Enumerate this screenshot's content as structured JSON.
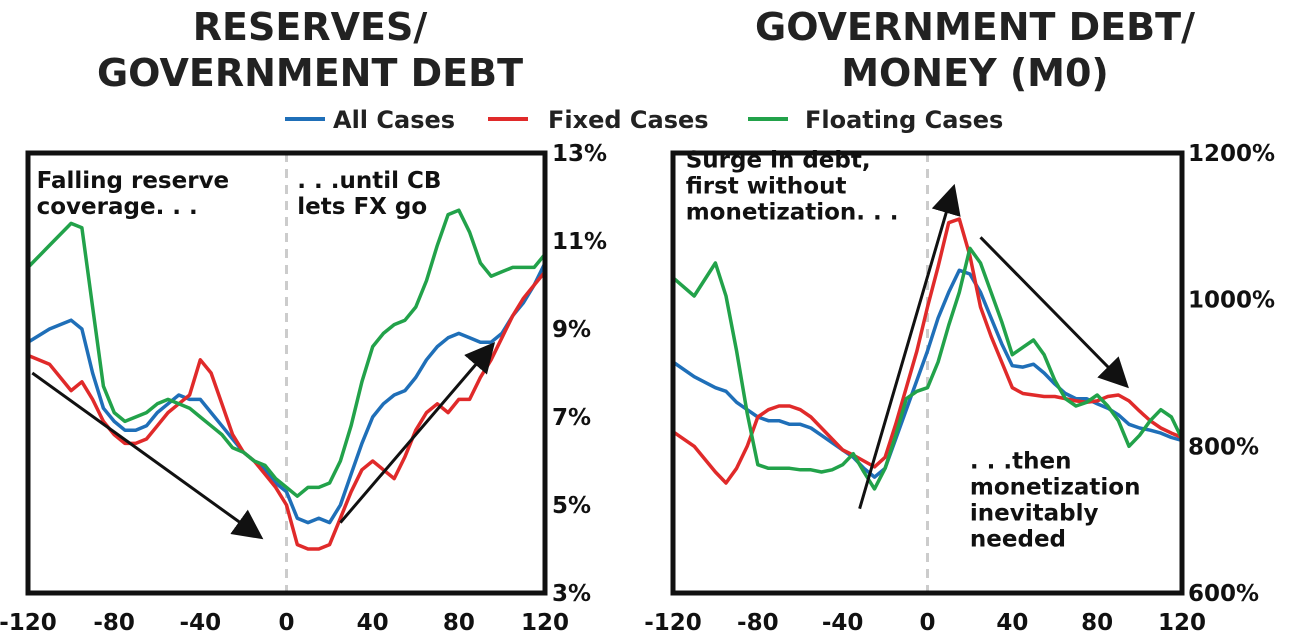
{
  "legend": [
    {
      "name": "All Cases",
      "color": "#1f6fb8"
    },
    {
      "name": "Fixed Cases",
      "color": "#e02a2a"
    },
    {
      "name": "Floating Cases",
      "color": "#22a24a"
    }
  ],
  "chart_data": [
    {
      "type": "line",
      "title": [
        "RESERVES/",
        "GOVERNMENT DEBT"
      ],
      "xlim": [
        -120,
        120
      ],
      "ylim": [
        3,
        13
      ],
      "x_ticks": [
        "-120",
        "-80",
        "-40",
        "0",
        "40",
        "80",
        "120"
      ],
      "y_ticks": [
        "3%",
        "5%",
        "7%",
        "9%",
        "11%",
        "13%"
      ],
      "y_tick_values": [
        3,
        5,
        7,
        9,
        11,
        13
      ],
      "y_axis_side": "right",
      "vertical_marker_x": 0,
      "annotations": [
        {
          "lines": [
            "Falling reserve",
            "coverage. . ."
          ],
          "x": -116,
          "y": 12.2
        },
        {
          "lines": [
            ". . .until CB",
            "lets FX go"
          ],
          "x": 5,
          "y": 12.2
        }
      ],
      "arrows": [
        {
          "from": [
            -118,
            8.0
          ],
          "to": [
            -13,
            4.3
          ]
        },
        {
          "from": [
            25,
            4.6
          ],
          "to": [
            95,
            8.6
          ]
        }
      ],
      "x": [
        -120,
        -110,
        -100,
        -95,
        -90,
        -85,
        -80,
        -75,
        -70,
        -65,
        -60,
        -55,
        -50,
        -45,
        -40,
        -35,
        -30,
        -25,
        -20,
        -15,
        -10,
        -5,
        0,
        5,
        10,
        15,
        20,
        25,
        30,
        35,
        40,
        45,
        50,
        55,
        60,
        65,
        70,
        75,
        80,
        85,
        90,
        95,
        100,
        105,
        110,
        115,
        120
      ],
      "series": [
        {
          "name": "All Cases",
          "color": "#1f6fb8",
          "values": [
            8.7,
            9.0,
            9.2,
            9.0,
            8.0,
            7.2,
            6.9,
            6.7,
            6.7,
            6.8,
            7.1,
            7.3,
            7.5,
            7.4,
            7.4,
            7.1,
            6.8,
            6.5,
            6.2,
            6.0,
            5.8,
            5.5,
            5.3,
            4.7,
            4.6,
            4.7,
            4.6,
            5.0,
            5.7,
            6.4,
            7.0,
            7.3,
            7.5,
            7.6,
            7.9,
            8.3,
            8.6,
            8.8,
            8.9,
            8.8,
            8.7,
            8.7,
            8.9,
            9.3,
            9.6,
            10.0,
            10.5
          ]
        },
        {
          "name": "Fixed Cases",
          "color": "#e02a2a",
          "values": [
            8.4,
            8.2,
            7.6,
            7.8,
            7.4,
            6.9,
            6.6,
            6.4,
            6.4,
            6.5,
            6.8,
            7.1,
            7.3,
            7.5,
            8.3,
            8.0,
            7.3,
            6.6,
            6.2,
            6.0,
            5.7,
            5.4,
            5.0,
            4.1,
            4.0,
            4.0,
            4.1,
            4.7,
            5.3,
            5.8,
            6.0,
            5.8,
            5.6,
            6.1,
            6.7,
            7.1,
            7.3,
            7.1,
            7.4,
            7.4,
            7.9,
            8.3,
            8.8,
            9.3,
            9.7,
            10.0,
            10.3
          ]
        },
        {
          "name": "Floating Cases",
          "color": "#22a24a",
          "values": [
            10.4,
            10.9,
            11.4,
            11.3,
            9.5,
            7.7,
            7.1,
            6.9,
            7.0,
            7.1,
            7.3,
            7.4,
            7.3,
            7.2,
            7.0,
            6.8,
            6.6,
            6.3,
            6.2,
            6.0,
            5.9,
            5.6,
            5.4,
            5.2,
            5.4,
            5.4,
            5.5,
            6.0,
            6.8,
            7.8,
            8.6,
            8.9,
            9.1,
            9.2,
            9.5,
            10.1,
            10.9,
            11.6,
            11.7,
            11.2,
            10.5,
            10.2,
            10.3,
            10.4,
            10.4,
            10.4,
            10.7
          ]
        }
      ]
    },
    {
      "type": "line",
      "title": [
        "GOVERNMENT DEBT/",
        "MONEY (M0)"
      ],
      "xlim": [
        -120,
        120
      ],
      "ylim": [
        600,
        1200
      ],
      "x_ticks": [
        "-120",
        "-80",
        "-40",
        "0",
        "40",
        "80",
        "120"
      ],
      "y_ticks": [
        "600%",
        "800%",
        "1000%",
        "1200%"
      ],
      "y_tick_values": [
        600,
        800,
        1000,
        1200
      ],
      "y_axis_side": "right",
      "vertical_marker_x": 0,
      "annotations": [
        {
          "lines": [
            "Surge in debt,",
            "first without",
            "monetization. . ."
          ],
          "x": -114,
          "y": 1180
        },
        {
          "lines": [
            ". . .then",
            "monetization",
            "inevitably",
            "needed"
          ],
          "x": 20,
          "y": 770
        }
      ],
      "arrows": [
        {
          "from": [
            -32,
            715
          ],
          "to": [
            12,
            1150
          ]
        },
        {
          "from": [
            25,
            1085
          ],
          "to": [
            93,
            885
          ]
        }
      ],
      "x": [
        -120,
        -110,
        -100,
        -95,
        -90,
        -85,
        -80,
        -75,
        -70,
        -65,
        -60,
        -55,
        -50,
        -45,
        -40,
        -35,
        -30,
        -25,
        -20,
        -15,
        -10,
        -5,
        0,
        5,
        10,
        15,
        20,
        25,
        30,
        35,
        40,
        45,
        50,
        55,
        60,
        65,
        70,
        75,
        80,
        85,
        90,
        95,
        100,
        105,
        110,
        115,
        120
      ],
      "series": [
        {
          "name": "All Cases",
          "color": "#1f6fb8",
          "values": [
            915,
            895,
            880,
            875,
            860,
            850,
            840,
            835,
            835,
            830,
            830,
            825,
            815,
            805,
            795,
            785,
            770,
            758,
            770,
            810,
            850,
            890,
            930,
            975,
            1010,
            1040,
            1035,
            1010,
            975,
            940,
            910,
            908,
            912,
            900,
            885,
            872,
            865,
            865,
            858,
            852,
            843,
            830,
            825,
            822,
            818,
            812,
            808
          ]
        },
        {
          "name": "Fixed Cases",
          "color": "#e02a2a",
          "values": [
            820,
            800,
            765,
            750,
            770,
            800,
            840,
            850,
            855,
            855,
            850,
            840,
            825,
            810,
            795,
            788,
            780,
            772,
            785,
            830,
            880,
            930,
            990,
            1045,
            1105,
            1110,
            1060,
            990,
            950,
            915,
            880,
            872,
            870,
            868,
            868,
            865,
            862,
            860,
            862,
            868,
            870,
            862,
            848,
            835,
            825,
            818,
            812
          ]
        },
        {
          "name": "Floating Cases",
          "color": "#22a24a",
          "values": [
            1030,
            1005,
            1050,
            1005,
            930,
            845,
            775,
            770,
            770,
            770,
            768,
            768,
            765,
            768,
            775,
            790,
            765,
            742,
            770,
            815,
            865,
            875,
            880,
            915,
            965,
            1010,
            1070,
            1050,
            1010,
            970,
            925,
            935,
            945,
            925,
            890,
            865,
            855,
            860,
            870,
            855,
            835,
            800,
            815,
            835,
            850,
            840,
            810
          ]
        }
      ]
    }
  ]
}
